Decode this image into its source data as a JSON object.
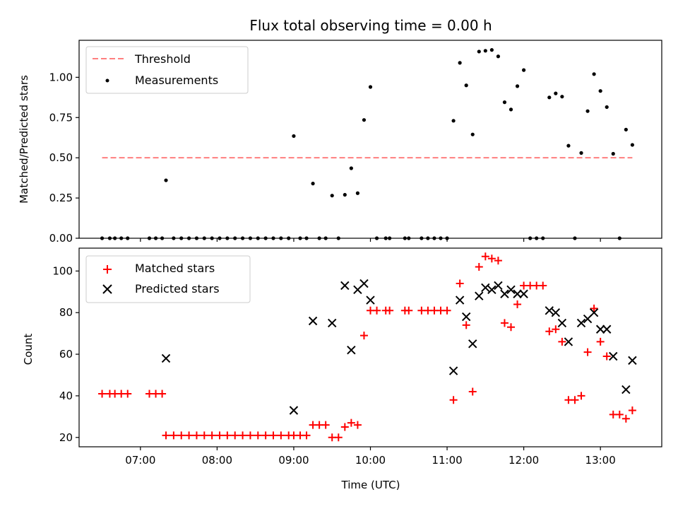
{
  "chart_data": {
    "title": "Flux total observing time = 0.00 h",
    "xlabel": "Time (UTC)",
    "x_ticks": [
      "07:00",
      "08:00",
      "09:00",
      "10:00",
      "11:00",
      "12:00",
      "13:00"
    ],
    "x_range": [
      "06:12",
      "13:48"
    ],
    "top": {
      "type": "scatter",
      "ylabel": "Matched/Predicted stars",
      "ylim": [
        0,
        1.23
      ],
      "y_ticks": [
        "0.00",
        "0.25",
        "0.50",
        "0.75",
        "1.00"
      ],
      "legend_position": "top-left",
      "threshold": {
        "name": "Threshold",
        "value": 0.5,
        "x_start": "06:30",
        "x_end": "13:25",
        "color": "#ff7f7f"
      },
      "measurements_name": "Measurements",
      "measurements_color": "#000000",
      "measurements": [
        [
          "06:30",
          0
        ],
        [
          "06:36",
          0
        ],
        [
          "06:40",
          0
        ],
        [
          "06:45",
          0
        ],
        [
          "06:50",
          0
        ],
        [
          "07:07",
          0
        ],
        [
          "07:12",
          0
        ],
        [
          "07:17",
          0
        ],
        [
          "07:20",
          0.36
        ],
        [
          "07:26",
          0
        ],
        [
          "07:32",
          0
        ],
        [
          "07:38",
          0
        ],
        [
          "07:44",
          0
        ],
        [
          "07:50",
          0
        ],
        [
          "07:56",
          0
        ],
        [
          "08:02",
          0
        ],
        [
          "08:08",
          0
        ],
        [
          "08:14",
          0
        ],
        [
          "08:20",
          0
        ],
        [
          "08:26",
          0
        ],
        [
          "08:32",
          0
        ],
        [
          "08:38",
          0
        ],
        [
          "08:44",
          0
        ],
        [
          "08:50",
          0
        ],
        [
          "08:56",
          0
        ],
        [
          "09:00",
          0.635
        ],
        [
          "09:05",
          0
        ],
        [
          "09:10",
          0
        ],
        [
          "09:15",
          0.34
        ],
        [
          "09:20",
          0
        ],
        [
          "09:25",
          0
        ],
        [
          "09:30",
          0.265
        ],
        [
          "09:35",
          0
        ],
        [
          "09:40",
          0.27
        ],
        [
          "09:45",
          0.435
        ],
        [
          "09:50",
          0.28
        ],
        [
          "09:55",
          0.735
        ],
        [
          "10:00",
          0.94
        ],
        [
          "10:05",
          0
        ],
        [
          "10:12",
          0
        ],
        [
          "10:15",
          0
        ],
        [
          "10:27",
          0
        ],
        [
          "10:30",
          0
        ],
        [
          "10:40",
          0
        ],
        [
          "10:45",
          0
        ],
        [
          "10:50",
          0
        ],
        [
          "10:55",
          0
        ],
        [
          "11:00",
          0
        ],
        [
          "11:05",
          0.73
        ],
        [
          "11:10",
          1.09
        ],
        [
          "11:15",
          0.95
        ],
        [
          "11:20",
          0.645
        ],
        [
          "11:25",
          1.16
        ],
        [
          "11:30",
          1.165
        ],
        [
          "11:35",
          1.17
        ],
        [
          "11:40",
          1.13
        ],
        [
          "11:45",
          0.845
        ],
        [
          "11:50",
          0.8
        ],
        [
          "11:55",
          0.945
        ],
        [
          "12:00",
          1.045
        ],
        [
          "12:05",
          0
        ],
        [
          "12:10",
          0
        ],
        [
          "12:15",
          0
        ],
        [
          "12:20",
          0.875
        ],
        [
          "12:25",
          0.9
        ],
        [
          "12:30",
          0.88
        ],
        [
          "12:35",
          0.575
        ],
        [
          "12:40",
          0
        ],
        [
          "12:45",
          0.53
        ],
        [
          "12:50",
          0.79
        ],
        [
          "12:55",
          1.02
        ],
        [
          "13:00",
          0.915
        ],
        [
          "13:05",
          0.815
        ],
        [
          "13:10",
          0.525
        ],
        [
          "13:15",
          0
        ],
        [
          "13:20",
          0.675
        ],
        [
          "13:25",
          0.58
        ]
      ]
    },
    "bottom": {
      "type": "scatter",
      "ylabel": "Count",
      "ylim": [
        15.5,
        111
      ],
      "y_ticks": [
        "20",
        "40",
        "60",
        "80",
        "100"
      ],
      "legend_position": "top-left",
      "matched_name": "Matched stars",
      "matched_color": "#ff0000",
      "predicted_name": "Predicted stars",
      "predicted_color": "#000000",
      "matched": [
        [
          "06:30",
          41
        ],
        [
          "06:36",
          41
        ],
        [
          "06:40",
          41
        ],
        [
          "06:45",
          41
        ],
        [
          "06:50",
          41
        ],
        [
          "07:07",
          41
        ],
        [
          "07:12",
          41
        ],
        [
          "07:17",
          41
        ],
        [
          "07:20",
          21
        ],
        [
          "07:26",
          21
        ],
        [
          "07:32",
          21
        ],
        [
          "07:38",
          21
        ],
        [
          "07:44",
          21
        ],
        [
          "07:50",
          21
        ],
        [
          "07:56",
          21
        ],
        [
          "08:02",
          21
        ],
        [
          "08:08",
          21
        ],
        [
          "08:14",
          21
        ],
        [
          "08:20",
          21
        ],
        [
          "08:26",
          21
        ],
        [
          "08:32",
          21
        ],
        [
          "08:38",
          21
        ],
        [
          "08:44",
          21
        ],
        [
          "08:50",
          21
        ],
        [
          "08:56",
          21
        ],
        [
          "09:00",
          21
        ],
        [
          "09:05",
          21
        ],
        [
          "09:10",
          21
        ],
        [
          "09:15",
          26
        ],
        [
          "09:20",
          26
        ],
        [
          "09:25",
          26
        ],
        [
          "09:30",
          20
        ],
        [
          "09:35",
          20
        ],
        [
          "09:40",
          25
        ],
        [
          "09:45",
          27
        ],
        [
          "09:50",
          26
        ],
        [
          "09:55",
          69
        ],
        [
          "10:00",
          81
        ],
        [
          "10:05",
          81
        ],
        [
          "10:12",
          81
        ],
        [
          "10:15",
          81
        ],
        [
          "10:27",
          81
        ],
        [
          "10:30",
          81
        ],
        [
          "10:40",
          81
        ],
        [
          "10:45",
          81
        ],
        [
          "10:50",
          81
        ],
        [
          "10:55",
          81
        ],
        [
          "11:00",
          81
        ],
        [
          "11:05",
          38
        ],
        [
          "11:10",
          94
        ],
        [
          "11:15",
          74
        ],
        [
          "11:20",
          42
        ],
        [
          "11:25",
          102
        ],
        [
          "11:30",
          107
        ],
        [
          "11:35",
          106
        ],
        [
          "11:40",
          105
        ],
        [
          "11:45",
          75
        ],
        [
          "11:50",
          73
        ],
        [
          "11:55",
          84
        ],
        [
          "12:00",
          93
        ],
        [
          "12:05",
          93
        ],
        [
          "12:10",
          93
        ],
        [
          "12:15",
          93
        ],
        [
          "12:20",
          71
        ],
        [
          "12:25",
          72
        ],
        [
          "12:30",
          66
        ],
        [
          "12:35",
          38
        ],
        [
          "12:40",
          38
        ],
        [
          "12:45",
          40
        ],
        [
          "12:50",
          61
        ],
        [
          "12:55",
          82
        ],
        [
          "13:00",
          66
        ],
        [
          "13:05",
          59
        ],
        [
          "13:10",
          31
        ],
        [
          "13:15",
          31
        ],
        [
          "13:20",
          29
        ],
        [
          "13:25",
          33
        ]
      ],
      "predicted": [
        [
          "07:20",
          58
        ],
        [
          "09:00",
          33
        ],
        [
          "09:15",
          76
        ],
        [
          "09:30",
          75
        ],
        [
          "09:40",
          93
        ],
        [
          "09:45",
          62
        ],
        [
          "09:50",
          91
        ],
        [
          "09:55",
          94
        ],
        [
          "10:00",
          86
        ],
        [
          "11:05",
          52
        ],
        [
          "11:10",
          86
        ],
        [
          "11:15",
          78
        ],
        [
          "11:20",
          65
        ],
        [
          "11:25",
          88
        ],
        [
          "11:30",
          92
        ],
        [
          "11:35",
          91
        ],
        [
          "11:40",
          93
        ],
        [
          "11:45",
          89
        ],
        [
          "11:50",
          91
        ],
        [
          "11:55",
          89
        ],
        [
          "12:00",
          89
        ],
        [
          "12:20",
          81
        ],
        [
          "12:25",
          80
        ],
        [
          "12:30",
          75
        ],
        [
          "12:35",
          66
        ],
        [
          "12:45",
          75
        ],
        [
          "12:50",
          77
        ],
        [
          "12:55",
          80
        ],
        [
          "13:00",
          72
        ],
        [
          "13:05",
          72
        ],
        [
          "13:10",
          59
        ],
        [
          "13:20",
          43
        ],
        [
          "13:25",
          57
        ]
      ]
    }
  }
}
